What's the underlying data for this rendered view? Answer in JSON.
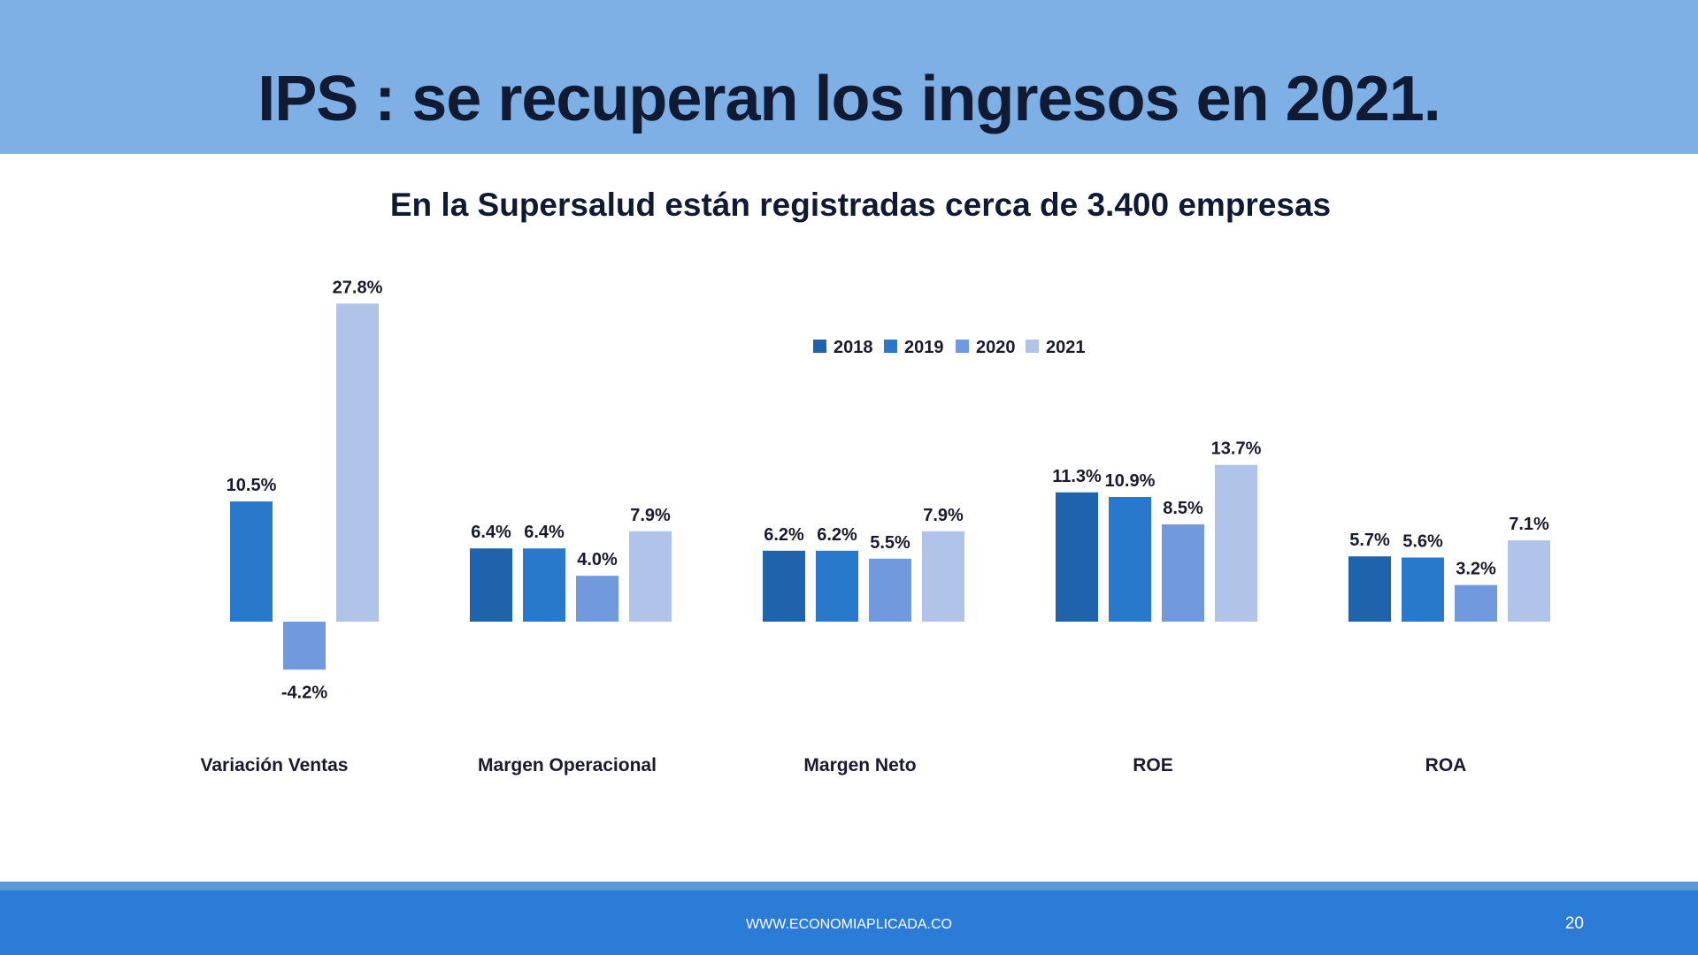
{
  "slide": {
    "title": "IPS : se recuperan  los ingresos en 2021.",
    "subtitle": "En la Supersalud están registradas cerca de 3.400 empresas",
    "footer_url": "WWW.ECONOMIAPLICADA.CO",
    "page_number": "20"
  },
  "chart_data": {
    "type": "bar",
    "title": "",
    "categories": [
      "Variación Ventas",
      "Margen Operacional",
      "Margen Neto",
      "ROE",
      "ROA"
    ],
    "series": [
      {
        "name": "2018",
        "color": "#1f63ad",
        "values": [
          null,
          6.4,
          6.2,
          11.3,
          5.7
        ],
        "labels": [
          "",
          "6.4%",
          "6.2%",
          "11.3%",
          "5.7%"
        ]
      },
      {
        "name": "2019",
        "color": "#2878cc",
        "values": [
          10.5,
          6.4,
          6.2,
          10.9,
          5.6
        ],
        "labels": [
          "10.5%",
          "6.4%",
          "6.2%",
          "10.9%",
          "5.6%"
        ]
      },
      {
        "name": "2020",
        "color": "#7099de",
        "values": [
          -4.2,
          4.0,
          5.5,
          8.5,
          3.2
        ],
        "labels": [
          "-4.2%",
          "4.0%",
          "5.5%",
          "8.5%",
          "3.2%"
        ]
      },
      {
        "name": "2021",
        "color": "#b0c4ea",
        "values": [
          27.8,
          7.9,
          7.9,
          13.7,
          7.1
        ],
        "labels": [
          "27.8%",
          "7.9%",
          "7.9%",
          "13.7%",
          "7.1%"
        ]
      }
    ],
    "unit": "%",
    "ylim": [
      -4.2,
      27.8
    ],
    "grid": false,
    "legend": "top-center"
  }
}
